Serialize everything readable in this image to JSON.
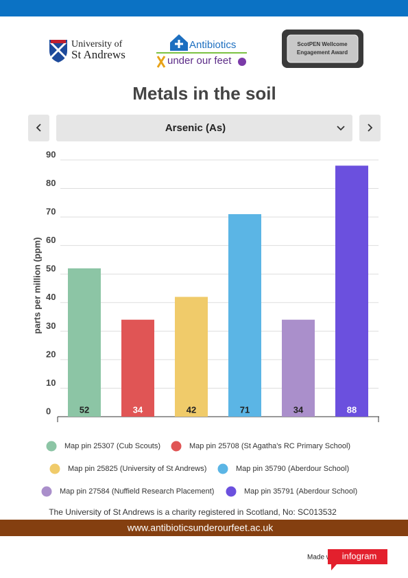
{
  "header": {
    "logo_1_line_1": "University of",
    "logo_1_line_2": "St Andrews",
    "logo_2_line_1": "Antibiotics",
    "logo_2_line_2": "under our feet",
    "logo_3_line_1": "ScotPEN Wellcome",
    "logo_3_line_2": "Engagement Award"
  },
  "title": "Metals in the soil",
  "selector": "Arsenic (As)",
  "chart_data": {
    "type": "bar",
    "y_label": "parts per million (ppm)",
    "categories": [
      "Map pin 25307 (Cub Scouts)",
      "Map pin 25708 (St Agatha's RC Primary School)",
      "Map pin 25825 (University of St Andrews)",
      "Map pin 35790 (Aberdour School)",
      "Map pin 27584 (Nuffield Research Placement)",
      "Map pin 35791 (Aberdour School)"
    ],
    "values": [
      52,
      34,
      42,
      71,
      34,
      88
    ],
    "colors": [
      "#8cc5a5",
      "#e05555",
      "#f0cb6a",
      "#5bb5e5",
      "#aa8fcb",
      "#6b50de"
    ],
    "ylim": [
      0,
      90
    ],
    "yticks": [
      0,
      10,
      20,
      30,
      40,
      50,
      60,
      70,
      80,
      90
    ],
    "grid": true,
    "legend": "bottom"
  },
  "footer": {
    "charity": "The University of St Andrews is a charity registered in Scotland, No: SC013532",
    "website": "www.antibioticsunderourfeet.ac.uk",
    "made_with": "Made with",
    "brand": "infogram"
  }
}
